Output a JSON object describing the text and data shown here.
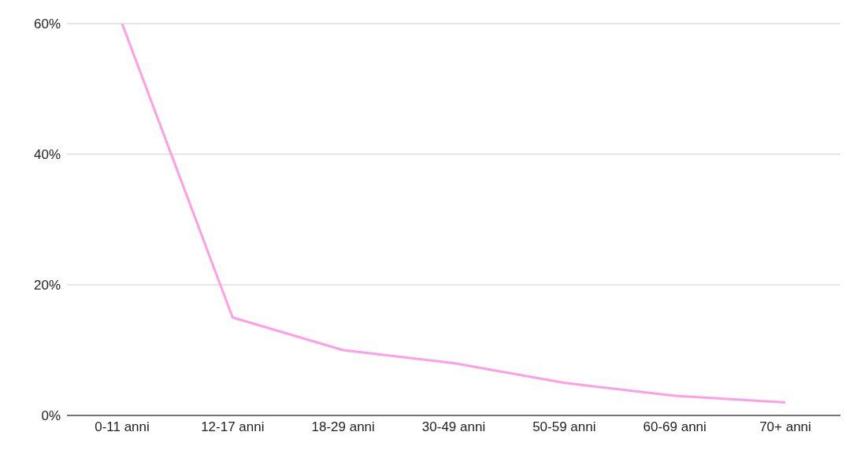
{
  "chart_data": {
    "type": "line",
    "categories": [
      "0-11 anni",
      "12-17 anni",
      "18-29 anni",
      "30-49 anni",
      "50-59 anni",
      "60-69 anni",
      "70+ anni"
    ],
    "series": [
      {
        "color": "#ff9ee6",
        "values": [
          60,
          15,
          10,
          8,
          5,
          3,
          2
        ]
      }
    ],
    "ylim": [
      0,
      60
    ],
    "yticks": [
      {
        "value": 0,
        "label": "0%"
      },
      {
        "value": 20,
        "label": "20%"
      },
      {
        "value": 40,
        "label": "40%"
      },
      {
        "value": 60,
        "label": "60%"
      }
    ],
    "grid": "y",
    "legend": false,
    "marker": "none",
    "line_style": "solid"
  }
}
